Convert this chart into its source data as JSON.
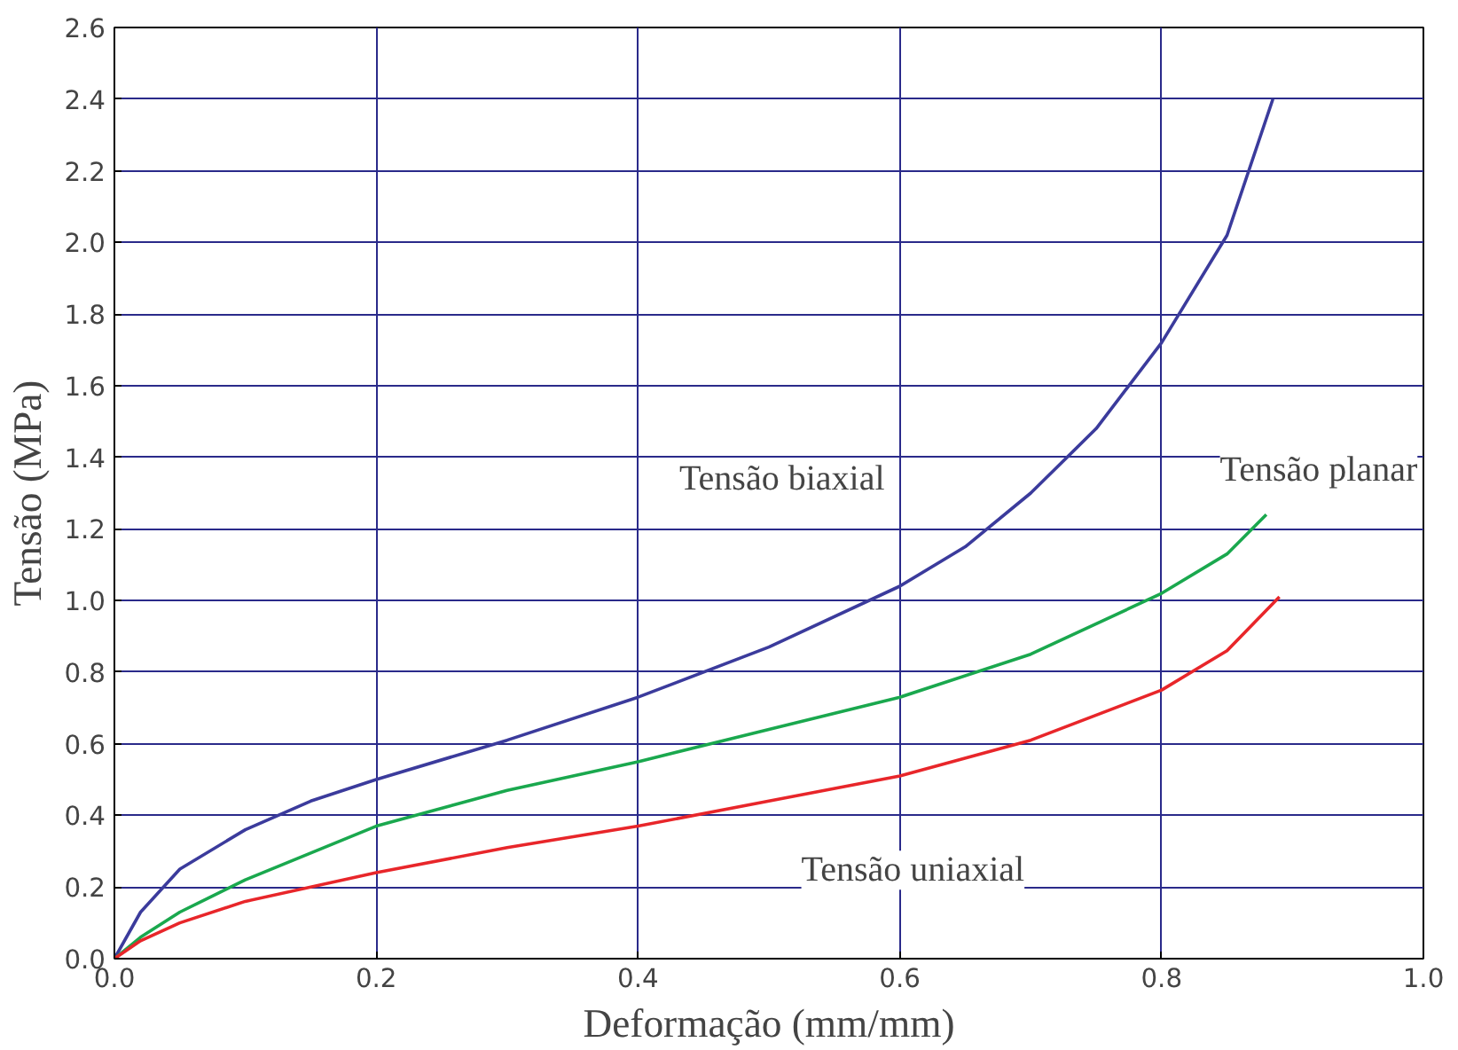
{
  "chart_data": {
    "type": "line",
    "xlabel": "Deformação (mm/mm)",
    "ylabel": "Tensão (MPa)",
    "xlim": [
      0,
      1
    ],
    "ylim": [
      0,
      2.6
    ],
    "xticks": [
      {
        "value": 0,
        "label": "0.0"
      },
      {
        "value": 0.2,
        "label": "0.2"
      },
      {
        "value": 0.4,
        "label": "0.4"
      },
      {
        "value": 0.6,
        "label": "0.6"
      },
      {
        "value": 0.8,
        "label": "0.8"
      },
      {
        "value": 1,
        "label": "1.0"
      }
    ],
    "yticks": [
      {
        "value": 0,
        "label": "0.0"
      },
      {
        "value": 0.2,
        "label": "0.2"
      },
      {
        "value": 0.4,
        "label": "0.4"
      },
      {
        "value": 0.6,
        "label": "0.6"
      },
      {
        "value": 0.8,
        "label": "0.8"
      },
      {
        "value": 1,
        "label": "1.0"
      },
      {
        "value": 1.2,
        "label": "1.2"
      },
      {
        "value": 1.4,
        "label": "1.4"
      },
      {
        "value": 1.6,
        "label": "1.6"
      },
      {
        "value": 1.8,
        "label": "1.8"
      },
      {
        "value": 2,
        "label": "2.0"
      },
      {
        "value": 2.2,
        "label": "2.2"
      },
      {
        "value": 2.4,
        "label": "2.4"
      },
      {
        "value": 2.6,
        "label": "2.6"
      }
    ],
    "grid": true,
    "legend": false,
    "marker": "none",
    "line_style": "solid",
    "series": [
      {
        "name": "Tensão biaxial",
        "color": "#3b3b9c",
        "x": [
          0,
          0.02,
          0.05,
          0.1,
          0.15,
          0.2,
          0.3,
          0.4,
          0.5,
          0.6,
          0.65,
          0.7,
          0.75,
          0.8,
          0.85,
          0.885
        ],
        "values": [
          0,
          0.13,
          0.25,
          0.36,
          0.44,
          0.5,
          0.61,
          0.73,
          0.87,
          1.04,
          1.15,
          1.3,
          1.48,
          1.72,
          2.02,
          2.4
        ]
      },
      {
        "name": "Tensão planar",
        "color": "#1aa84e",
        "x": [
          0,
          0.02,
          0.05,
          0.1,
          0.2,
          0.3,
          0.4,
          0.5,
          0.6,
          0.7,
          0.8,
          0.85,
          0.88
        ],
        "values": [
          0,
          0.06,
          0.13,
          0.22,
          0.37,
          0.47,
          0.55,
          0.64,
          0.73,
          0.85,
          1.02,
          1.13,
          1.24
        ]
      },
      {
        "name": "Tensão uniaxial",
        "color": "#e8262a",
        "x": [
          0,
          0.02,
          0.05,
          0.1,
          0.2,
          0.3,
          0.4,
          0.5,
          0.6,
          0.7,
          0.8,
          0.85,
          0.89
        ],
        "values": [
          0,
          0.05,
          0.1,
          0.16,
          0.24,
          0.31,
          0.37,
          0.44,
          0.51,
          0.61,
          0.75,
          0.86,
          1.01
        ]
      }
    ]
  }
}
